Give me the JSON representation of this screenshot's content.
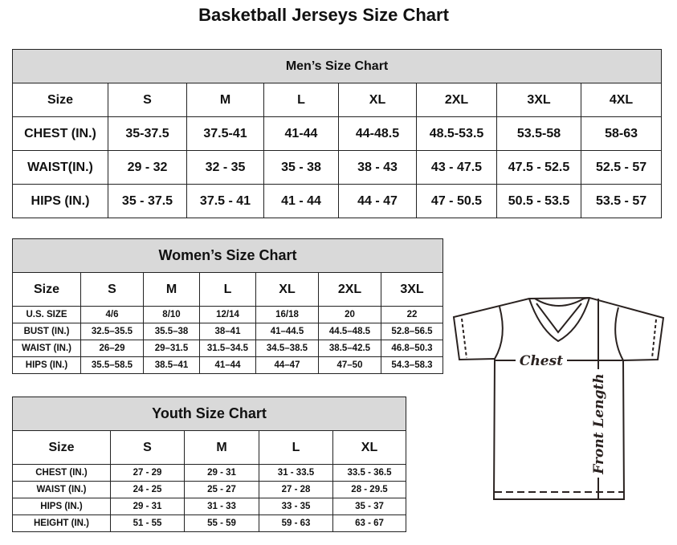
{
  "title": "Basketball Jerseys Size Chart",
  "men": {
    "title": "Men’s Size Chart",
    "header": [
      "Size",
      "S",
      "M",
      "L",
      "XL",
      "2XL",
      "3XL",
      "4XL"
    ],
    "rows": [
      [
        "CHEST (IN.)",
        "35-37.5",
        "37.5-41",
        "41-44",
        "44-48.5",
        "48.5-53.5",
        "53.5-58",
        "58-63"
      ],
      [
        "WAIST(IN.)",
        "29 - 32",
        "32 - 35",
        "35 - 38",
        "38 - 43",
        "43 - 47.5",
        "47.5 - 52.5",
        "52.5 - 57"
      ],
      [
        "HIPS (IN.)",
        "35 - 37.5",
        "37.5 - 41",
        "41 - 44",
        "44 - 47",
        "47 - 50.5",
        "50.5 - 53.5",
        "53.5 - 57"
      ]
    ]
  },
  "women": {
    "title": "Women’s Size Chart",
    "header": [
      "Size",
      "S",
      "M",
      "L",
      "XL",
      "2XL",
      "3XL"
    ],
    "rows": [
      [
        "U.S. SIZE",
        "4/6",
        "8/10",
        "12/14",
        "16/18",
        "20",
        "22"
      ],
      [
        "BUST (IN.)",
        "32.5–35.5",
        "35.5–38",
        "38–41",
        "41–44.5",
        "44.5–48.5",
        "52.8–56.5"
      ],
      [
        "WAIST (IN.)",
        "26–29",
        "29–31.5",
        "31.5–34.5",
        "34.5–38.5",
        "38.5–42.5",
        "46.8–50.3"
      ],
      [
        "HIPS (IN.)",
        "35.5–58.5",
        "38.5–41",
        "41–44",
        "44–47",
        "47–50",
        "54.3–58.3"
      ]
    ]
  },
  "youth": {
    "title": "Youth Size Chart",
    "header": [
      "Size",
      "S",
      "M",
      "L",
      "XL"
    ],
    "rows": [
      [
        "CHEST (IN.)",
        "27 - 29",
        "29 - 31",
        "31 - 33.5",
        "33.5 - 36.5"
      ],
      [
        "WAIST (IN.)",
        "24 - 25",
        "25 - 27",
        "27 - 28",
        "28 - 29.5"
      ],
      [
        "HIPS (IN.)",
        "29 - 31",
        "31 - 33",
        "33 - 35",
        "35 - 37"
      ],
      [
        "HEIGHT (IN.)",
        "51 - 55",
        "55 - 59",
        "59 - 63",
        "63 - 67"
      ]
    ]
  },
  "diagram": {
    "chest_label": "Chest",
    "length_label": "Front Length"
  }
}
